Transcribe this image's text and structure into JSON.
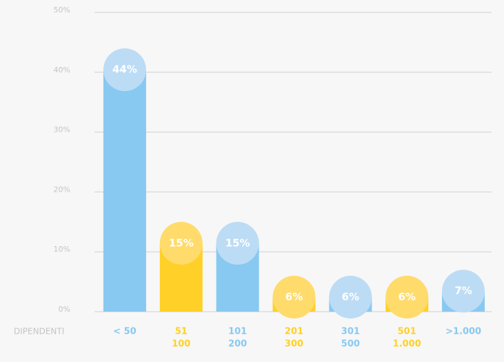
{
  "chart_data": {
    "type": "bar",
    "x_label": "DIPENDENTI",
    "categories": [
      [
        "< 50"
      ],
      [
        "51",
        "100"
      ],
      [
        "101",
        "200"
      ],
      [
        "201",
        "300"
      ],
      [
        "301",
        "500"
      ],
      [
        "501",
        "1.000"
      ],
      [
        ">1.000"
      ]
    ],
    "values": [
      44,
      15,
      15,
      6,
      6,
      6,
      7
    ],
    "value_labels": [
      "44%",
      "15%",
      "15%",
      "6%",
      "6%",
      "6%",
      "7%"
    ],
    "colors": [
      "#88c9f1",
      "#ffd027",
      "#88c9f1",
      "#ffd027",
      "#88c9f1",
      "#ffd027",
      "#88c9f1"
    ],
    "cap_colors": [
      "#bcdcf5",
      "#ffdb6c",
      "#bcdcf5",
      "#ffdb6c",
      "#bcdcf5",
      "#ffdb6c",
      "#bcdcf5"
    ],
    "ylim": [
      0,
      50
    ],
    "yticks": [
      {
        "value": 0,
        "label": "0%"
      },
      {
        "value": 10,
        "label": "10%"
      },
      {
        "value": 20,
        "label": "20%"
      },
      {
        "value": 30,
        "label": "30%"
      },
      {
        "value": 40,
        "label": "40%"
      },
      {
        "value": 50,
        "label": "50%"
      }
    ],
    "grid": true
  }
}
